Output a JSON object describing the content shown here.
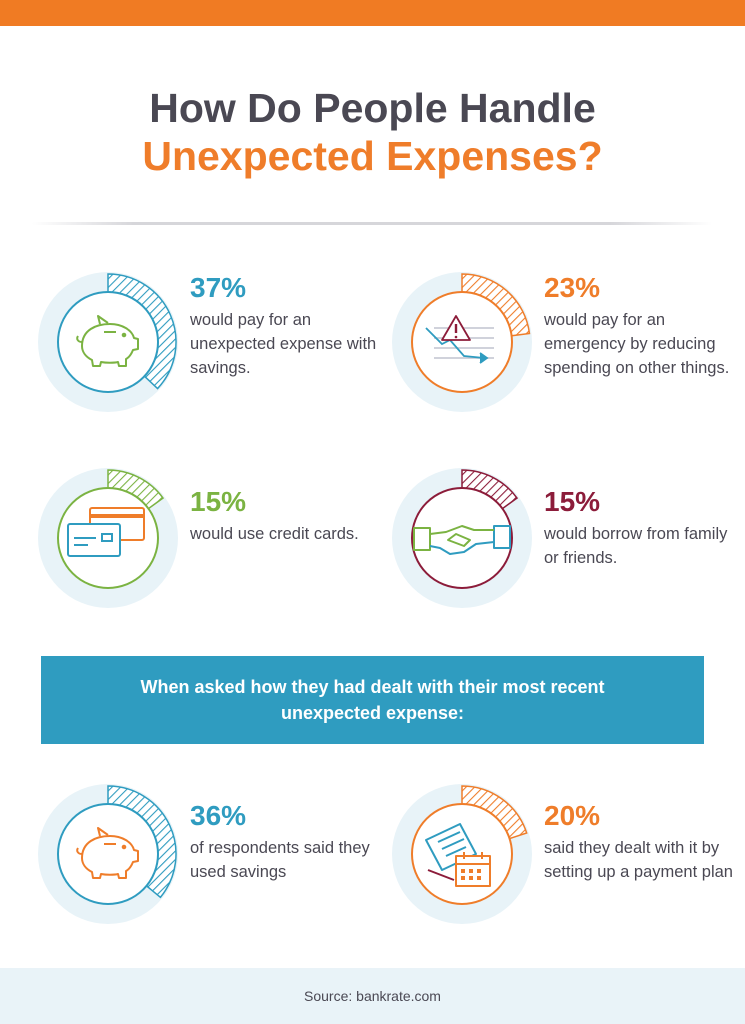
{
  "header": {
    "title_line1": "How Do People Handle",
    "title_line2": "Unexpected Expenses?"
  },
  "stats": [
    {
      "percent": "37%",
      "value": 37,
      "description": "would pay for an unexpected expense with savings.",
      "color": "#2f9cc0",
      "icon": "piggy-bank-icon"
    },
    {
      "percent": "23%",
      "value": 23,
      "description": "would pay for an emergency by reducing spending on other things.",
      "color": "#ef7d2a",
      "icon": "warning-chart-icon"
    },
    {
      "percent": "15%",
      "value": 15,
      "description": "would use credit cards.",
      "color": "#7bb342",
      "icon": "credit-cards-icon"
    },
    {
      "percent": "15%",
      "value": 15,
      "description": "would borrow from family or friends.",
      "color": "#8c1c3a",
      "icon": "handshake-icon"
    }
  ],
  "banner": {
    "text": "When asked how they had dealt with their most recent unexpected expense:"
  },
  "recent": [
    {
      "percent": "36%",
      "value": 36,
      "description": "of respondents said they used savings",
      "color": "#2f9cc0",
      "icon": "piggy-bank-icon"
    },
    {
      "percent": "20%",
      "value": 20,
      "description": "said they dealt with it by setting up a payment plan",
      "color": "#ef7d2a",
      "icon": "payment-plan-icon"
    }
  ],
  "footer": {
    "source": "Source: bankrate.com"
  }
}
